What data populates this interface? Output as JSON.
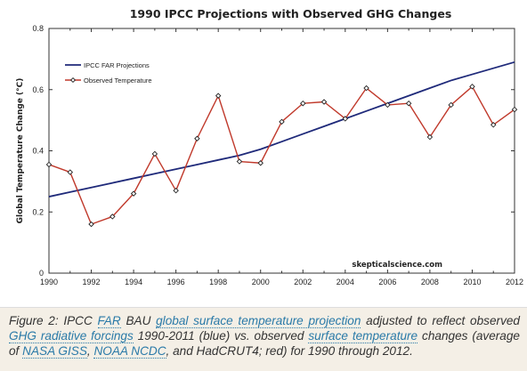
{
  "chart_data": {
    "type": "line",
    "title": "1990 IPCC Projections with Observed GHG Changes",
    "xlabel": "",
    "ylabel": "Global Temperature Change (°C)",
    "xlim": [
      1990,
      2012
    ],
    "ylim": [
      0,
      0.8
    ],
    "xticks": [
      "1990",
      "1992",
      "1994",
      "1996",
      "1998",
      "2000",
      "2002",
      "2004",
      "2006",
      "2008",
      "2010",
      "2012"
    ],
    "yticks": [
      "0",
      "0.2",
      "0.4",
      "0.6",
      "0.8"
    ],
    "legend_position": "top-left",
    "grid": false,
    "series": [
      {
        "name": "IPCC FAR Projections",
        "color": "#1f2a7a",
        "marker": "none",
        "x": [
          1990,
          1991,
          1992,
          1993,
          1994,
          1995,
          1996,
          1997,
          1998,
          1999,
          2000,
          2001,
          2002,
          2003,
          2004,
          2005,
          2006,
          2007,
          2008,
          2009,
          2010,
          2011,
          2012
        ],
        "values": [
          0.25,
          0.265,
          0.28,
          0.295,
          0.31,
          0.325,
          0.34,
          0.355,
          0.37,
          0.385,
          0.405,
          0.43,
          0.455,
          0.48,
          0.505,
          0.53,
          0.555,
          0.58,
          0.605,
          0.63,
          0.65,
          0.67,
          0.69
        ]
      },
      {
        "name": "Observed Temperature",
        "color": "#c0392b",
        "marker": "diamond",
        "x": [
          1990,
          1991,
          1992,
          1993,
          1994,
          1995,
          1996,
          1997,
          1998,
          1999,
          2000,
          2001,
          2002,
          2003,
          2004,
          2005,
          2006,
          2007,
          2008,
          2009,
          2010,
          2011,
          2012
        ],
        "values": [
          0.355,
          0.33,
          0.16,
          0.185,
          0.26,
          0.39,
          0.27,
          0.44,
          0.58,
          0.365,
          0.36,
          0.495,
          0.555,
          0.56,
          0.505,
          0.605,
          0.55,
          0.555,
          0.445,
          0.55,
          0.61,
          0.485,
          0.535
        ]
      }
    ]
  },
  "watermark": "skepticalscience.com",
  "caption": {
    "segments": [
      {
        "text": "Figure 2: IPCC ",
        "link": false
      },
      {
        "text": "FAR",
        "link": true
      },
      {
        "text": " BAU ",
        "link": false
      },
      {
        "text": "global surface temperature projection",
        "link": true
      },
      {
        "text": " adjusted to reflect observed ",
        "link": false
      },
      {
        "text": "GHG radiative forcings",
        "link": true
      },
      {
        "text": " 1990-2011 (blue) vs. observed ",
        "link": false
      },
      {
        "text": "surface temperature",
        "link": true
      },
      {
        "text": " changes (average of ",
        "link": false
      },
      {
        "text": "NASA GISS",
        "link": true
      },
      {
        "text": ", ",
        "link": false
      },
      {
        "text": "NOAA NCDC",
        "link": true
      },
      {
        "text": ", and HadCRUT4; red) for 1990 through 2012.",
        "link": false
      }
    ]
  },
  "colors": {
    "projection_line": "#1f2a7a",
    "observed_line": "#c0392b",
    "caption_background": "#f4efe6",
    "caption_link": "#2a7aa8"
  }
}
